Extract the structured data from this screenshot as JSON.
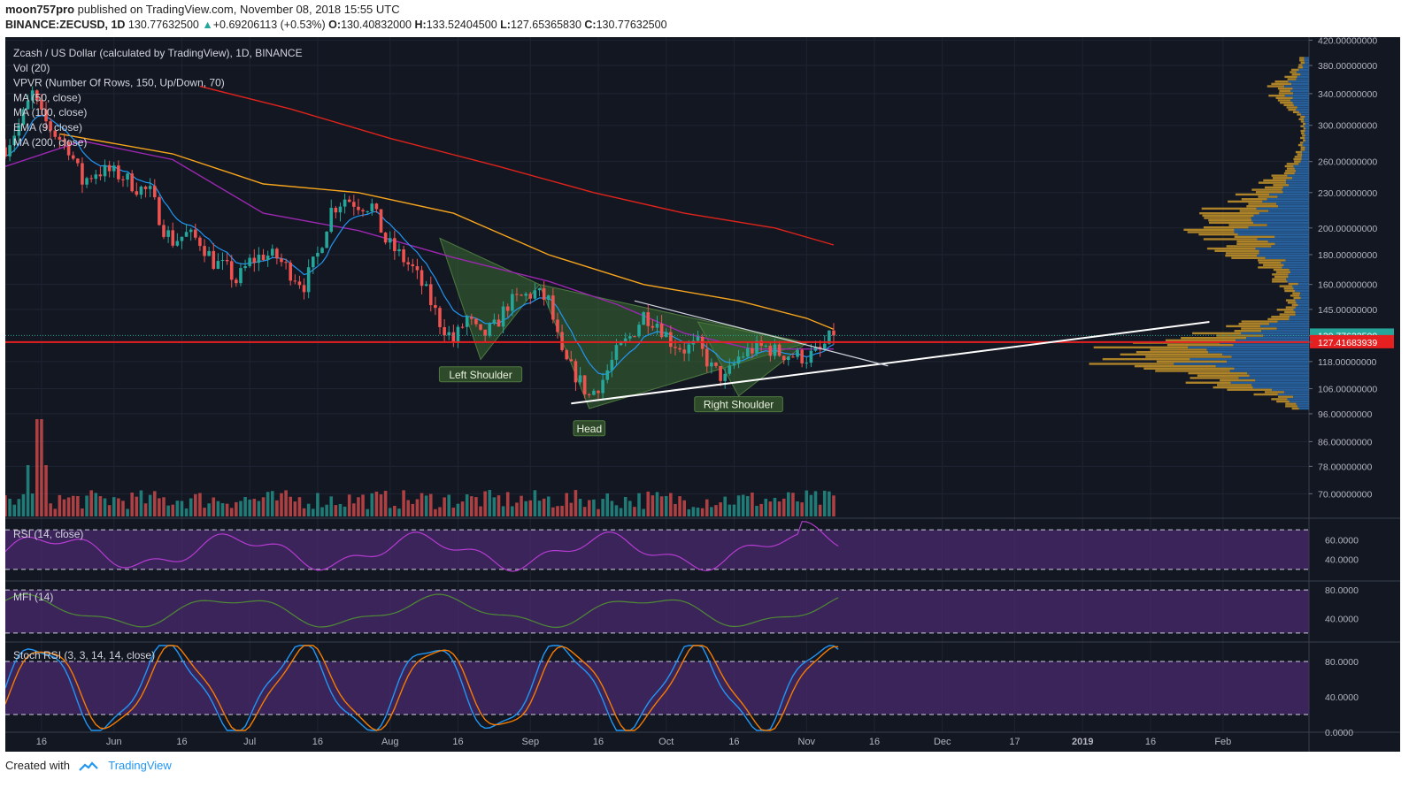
{
  "header": {
    "author": "moon757pro",
    "published": "published on TradingView.com, November 08, 2018 15:55 UTC",
    "symbol": "BINANCE:ZECUSD, 1D",
    "last": "130.77632500",
    "change": "+0.69206113 (+0.53%)",
    "o_label": "O:",
    "o": "130.40832000",
    "h_label": "H:",
    "h": "133.52404500",
    "l_label": "L:",
    "l": "127.65365830",
    "c_label": "C:",
    "c": "130.77632500"
  },
  "legend": [
    "Zcash / US Dollar (calculated by TradingView), 1D, BINANCE",
    "Vol (20)",
    "VPVR (Number Of Rows, 150, Up/Down, 70)",
    "MA (50, close)",
    "MA (100, close)",
    "EMA (9, close)",
    "MA (200, close)"
  ],
  "footer": {
    "created_with": "Created with",
    "brand": "TradingView"
  },
  "colors": {
    "background": "#131722",
    "up": "#26a69a",
    "down": "#ef5350",
    "ma50": "#9c27b0",
    "ma100": "#f7a51c",
    "ema9": "#2196f3",
    "ma200": "#e0231a",
    "pattern_fill": "#3a6b35",
    "oscillator_band": "#4a2a6e"
  },
  "chart_data": [
    {
      "type": "candlestick",
      "title": "Zcash / US Dollar (calculated by TradingView), 1D, BINANCE",
      "price_scale_labels": [
        "420.00000000",
        "380.00000000",
        "340.00000000",
        "300.00000000",
        "260.00000000",
        "230.00000000",
        "200.00000000",
        "180.00000000",
        "160.00000000",
        "145.00000000",
        "130.77632500",
        "127.41683939",
        "118.00000000",
        "106.00000000",
        "96.00000000",
        "86.00000000",
        "78.00000000",
        "70.00000000"
      ],
      "price_scale": {
        "log": true,
        "range": [
          64,
          425
        ]
      },
      "last_price": 130.776325,
      "horizontal_line": 127.41683939,
      "x_axis_labels": [
        "16",
        "Jun",
        "16",
        "Jul",
        "16",
        "Aug",
        "16",
        "Sep",
        "16",
        "Oct",
        "16",
        "Nov",
        "16",
        "Dec",
        "17",
        "2019",
        "16",
        "Feb"
      ],
      "x_range": [
        "2018-05-08",
        "2019-02-20"
      ],
      "close_points": [
        [
          "2018-05-08",
          275
        ],
        [
          "2018-05-11",
          300
        ],
        [
          "2018-05-14",
          340
        ],
        [
          "2018-05-16",
          310
        ],
        [
          "2018-05-19",
          290
        ],
        [
          "2018-05-22",
          275
        ],
        [
          "2018-05-25",
          240
        ],
        [
          "2018-05-28",
          250
        ],
        [
          "2018-05-31",
          250
        ],
        [
          "2018-06-03",
          245
        ],
        [
          "2018-06-06",
          235
        ],
        [
          "2018-06-09",
          230
        ],
        [
          "2018-06-12",
          200
        ],
        [
          "2018-06-14",
          190
        ],
        [
          "2018-06-17",
          195
        ],
        [
          "2018-06-20",
          190
        ],
        [
          "2018-06-23",
          175
        ],
        [
          "2018-06-26",
          170
        ],
        [
          "2018-06-28",
          162
        ],
        [
          "2018-07-01",
          175
        ],
        [
          "2018-07-04",
          180
        ],
        [
          "2018-07-07",
          178
        ],
        [
          "2018-07-10",
          168
        ],
        [
          "2018-07-13",
          160
        ],
        [
          "2018-07-16",
          180
        ],
        [
          "2018-07-19",
          215
        ],
        [
          "2018-07-22",
          225
        ],
        [
          "2018-07-25",
          220
        ],
        [
          "2018-07-28",
          218
        ],
        [
          "2018-07-31",
          190
        ],
        [
          "2018-08-03",
          180
        ],
        [
          "2018-08-06",
          170
        ],
        [
          "2018-08-09",
          155
        ],
        [
          "2018-08-12",
          138
        ],
        [
          "2018-08-15",
          128
        ],
        [
          "2018-08-18",
          140
        ],
        [
          "2018-08-21",
          130
        ],
        [
          "2018-08-24",
          135
        ],
        [
          "2018-08-27",
          148
        ],
        [
          "2018-08-30",
          152
        ],
        [
          "2018-09-02",
          155
        ],
        [
          "2018-09-05",
          150
        ],
        [
          "2018-09-08",
          120
        ],
        [
          "2018-09-11",
          112
        ],
        [
          "2018-09-14",
          103
        ],
        [
          "2018-09-17",
          110
        ],
        [
          "2018-09-20",
          122
        ],
        [
          "2018-09-23",
          130
        ],
        [
          "2018-09-26",
          142
        ],
        [
          "2018-09-29",
          138
        ],
        [
          "2018-10-02",
          128
        ],
        [
          "2018-10-05",
          124
        ],
        [
          "2018-10-08",
          126
        ],
        [
          "2018-10-11",
          115
        ],
        [
          "2018-10-14",
          110
        ],
        [
          "2018-10-17",
          120
        ],
        [
          "2018-10-20",
          124
        ],
        [
          "2018-10-23",
          125
        ],
        [
          "2018-10-26",
          122
        ],
        [
          "2018-10-29",
          121
        ],
        [
          "2018-11-01",
          120
        ],
        [
          "2018-11-04",
          123
        ],
        [
          "2018-11-07",
          132
        ]
      ],
      "moving_averages": [
        {
          "name": "MA (50, close)",
          "points": [
            [
              "2018-05-08",
              255
            ],
            [
              "2018-05-25",
              282
            ],
            [
              "2018-06-14",
              262
            ],
            [
              "2018-07-04",
              212
            ],
            [
              "2018-07-25",
              198
            ],
            [
              "2018-08-15",
              178
            ],
            [
              "2018-09-05",
              162
            ],
            [
              "2018-09-20",
              148
            ],
            [
              "2018-10-05",
              132
            ],
            [
              "2018-10-20",
              124
            ],
            [
              "2018-11-07",
              124
            ]
          ]
        },
        {
          "name": "MA (100, close)",
          "points": [
            [
              "2018-05-20",
              290
            ],
            [
              "2018-06-14",
              268
            ],
            [
              "2018-07-04",
              238
            ],
            [
              "2018-07-25",
              230
            ],
            [
              "2018-08-15",
              212
            ],
            [
              "2018-09-05",
              180
            ],
            [
              "2018-09-26",
              160
            ],
            [
              "2018-10-17",
              150
            ],
            [
              "2018-11-01",
              140
            ],
            [
              "2018-11-07",
              134
            ]
          ]
        },
        {
          "name": "MA (200, close)",
          "points": [
            [
              "2018-06-20",
              350
            ],
            [
              "2018-07-10",
              320
            ],
            [
              "2018-08-01",
              285
            ],
            [
              "2018-08-25",
              255
            ],
            [
              "2018-09-15",
              230
            ],
            [
              "2018-10-05",
              212
            ],
            [
              "2018-10-25",
              200
            ],
            [
              "2018-11-07",
              187
            ]
          ]
        }
      ],
      "annotations": [
        "Left Shoulder",
        "Head",
        "Right Shoulder"
      ],
      "volume_profile": {
        "type": "horizontal-bar",
        "label": "VPVR (Number Of Rows, 150, Up/Down, 70)"
      }
    },
    {
      "type": "bar",
      "title": "Vol (20)"
    },
    {
      "type": "line",
      "title": "RSI (14, close)",
      "y_tick_labels": [
        "60.0000",
        "40.0000"
      ],
      "ylim": [
        20,
        80
      ],
      "levels": [
        70,
        30
      ]
    },
    {
      "type": "line",
      "title": "MFI (14)",
      "y_tick_labels": [
        "80.0000",
        "40.0000"
      ],
      "ylim": [
        10,
        90
      ],
      "levels": [
        80,
        20
      ]
    },
    {
      "type": "line",
      "title": "Stoch RSI (3, 3, 14, 14, close)",
      "y_tick_labels": [
        "80.0000",
        "40.0000",
        "0.0000"
      ],
      "ylim": [
        0,
        100
      ],
      "levels": [
        80,
        20
      ]
    }
  ]
}
